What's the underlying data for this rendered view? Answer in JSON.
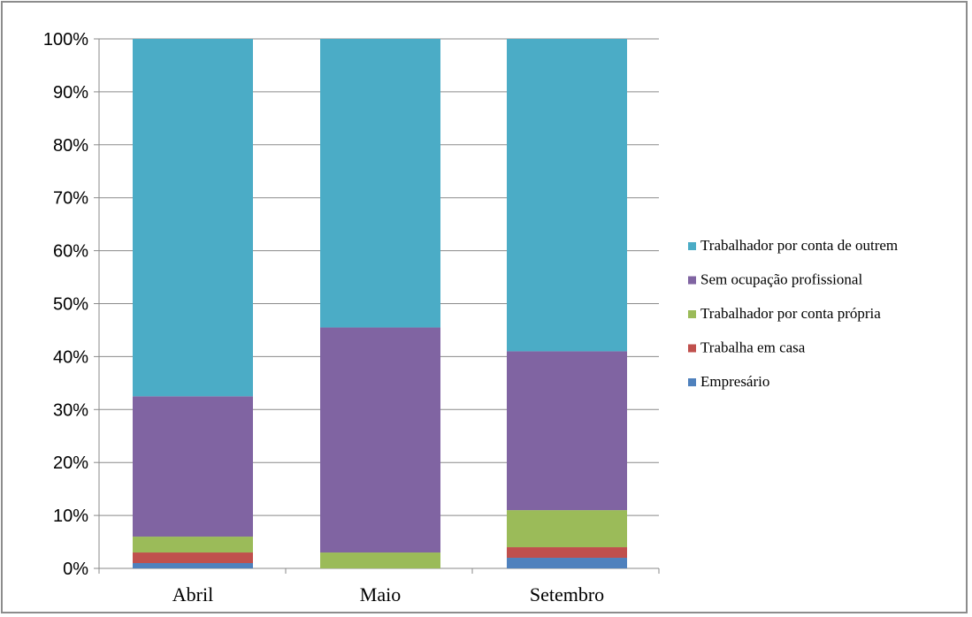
{
  "chart_data": {
    "type": "bar",
    "stacked": true,
    "percent_stacked": true,
    "title": "",
    "xlabel": "",
    "ylabel": "",
    "categories": [
      "Abril",
      "Maio",
      "Setembro"
    ],
    "y_ticks": [
      "0%",
      "10%",
      "20%",
      "30%",
      "40%",
      "50%",
      "60%",
      "70%",
      "80%",
      "90%",
      "100%"
    ],
    "ylim": [
      0,
      100
    ],
    "grid": true,
    "legend_position": "right",
    "series": [
      {
        "name": "Empresário",
        "color": "#4f81bd",
        "values": [
          1,
          0,
          2
        ]
      },
      {
        "name": "Trabalha em casa",
        "color": "#c0504d",
        "values": [
          2,
          0,
          2
        ]
      },
      {
        "name": "Trabalhador por conta própria",
        "color": "#9bbb59",
        "values": [
          3,
          3,
          7
        ]
      },
      {
        "name": "Sem ocupação profissional",
        "color": "#8064a2",
        "values": [
          26.5,
          42.5,
          30
        ]
      },
      {
        "name": "Trabalhador por conta de outrem",
        "color": "#4bacc6",
        "values": [
          67.5,
          54.5,
          59
        ]
      }
    ]
  }
}
